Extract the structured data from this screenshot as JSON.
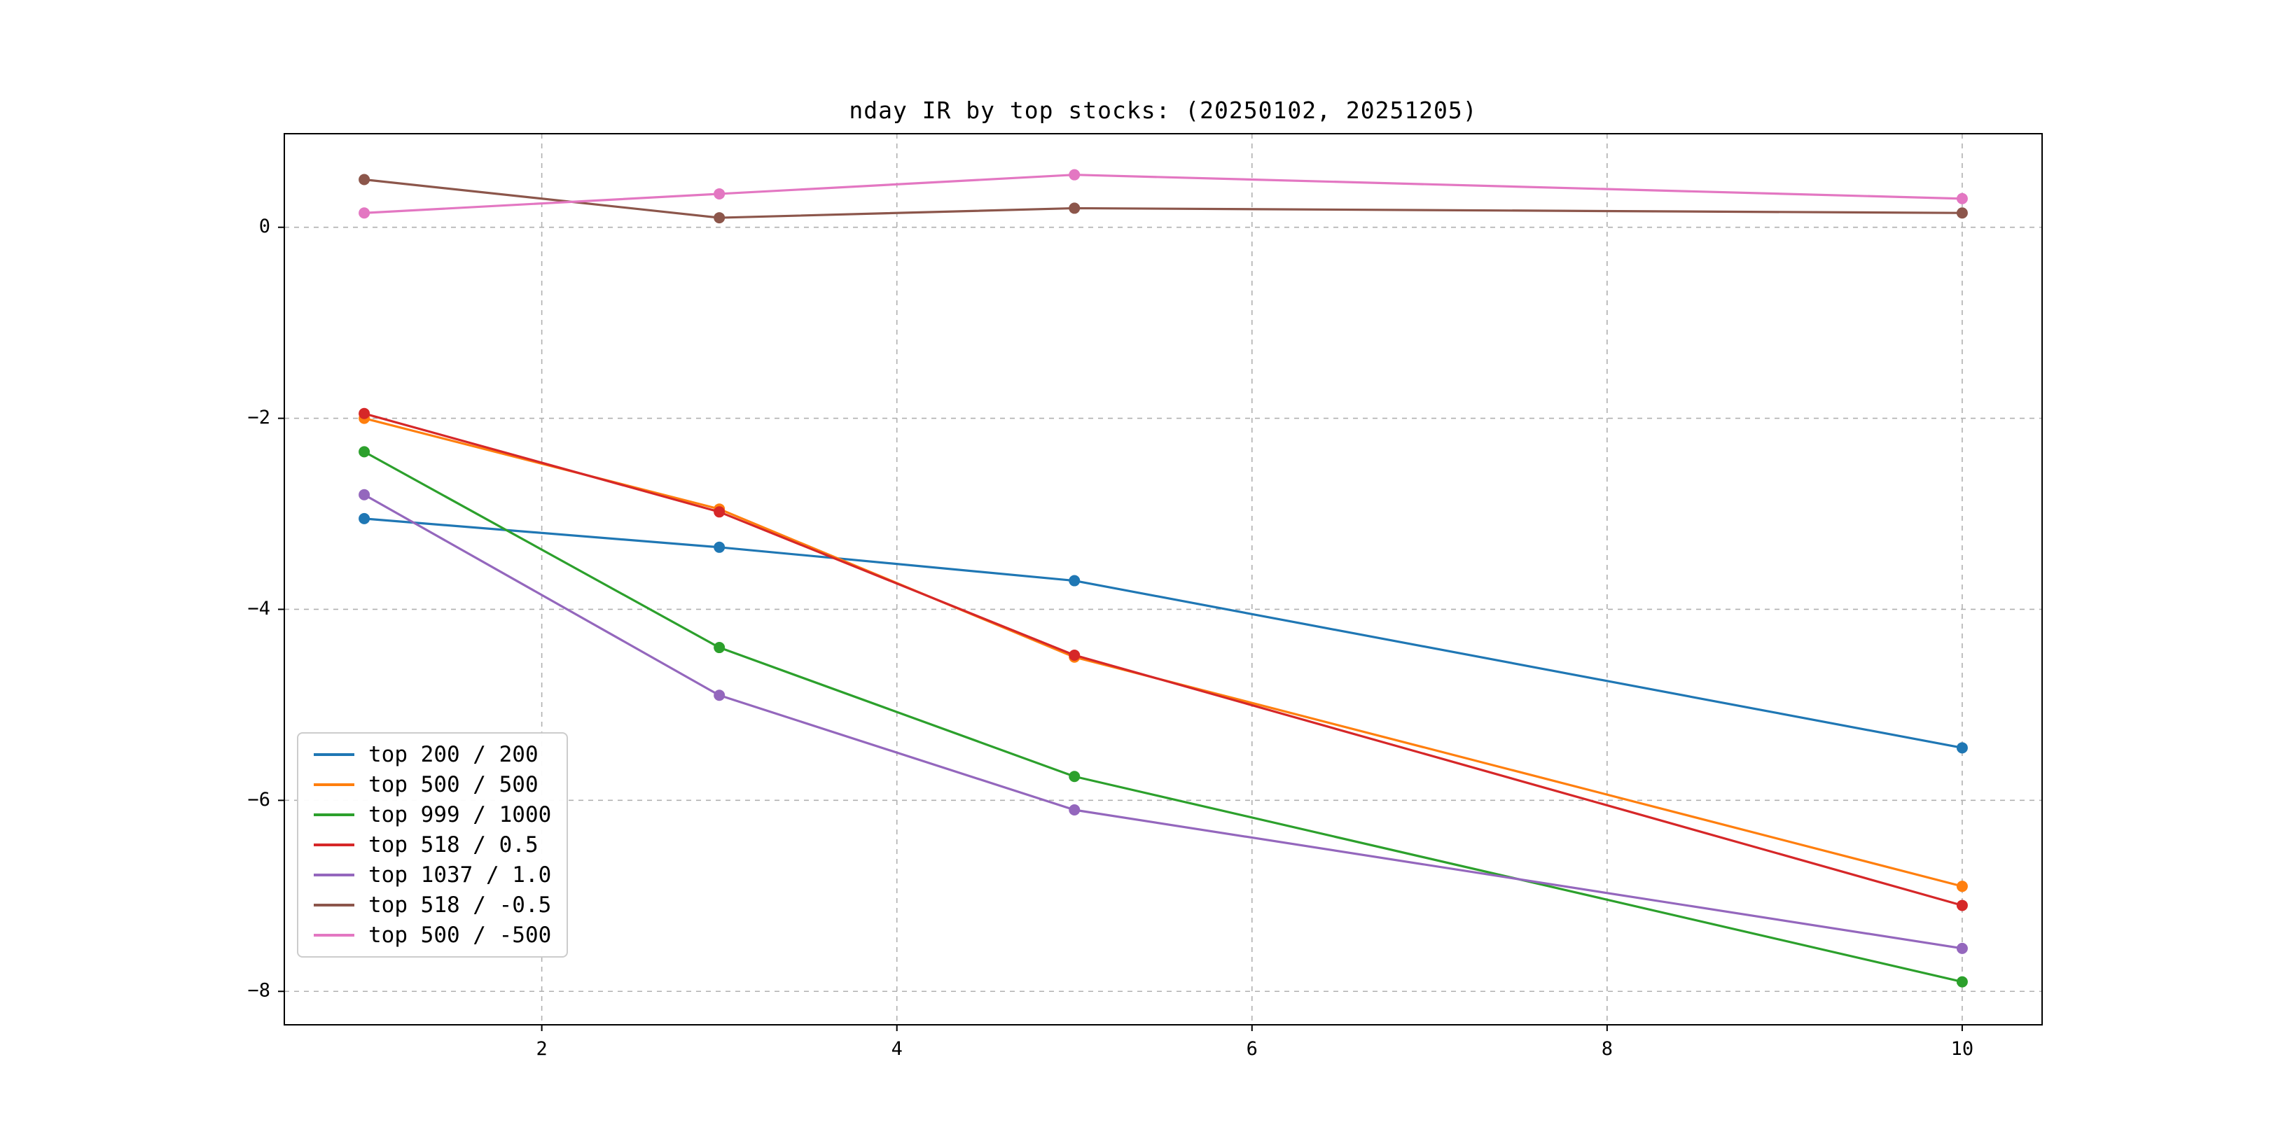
{
  "page": {
    "background": "#ffffff"
  },
  "chart_data": {
    "type": "line",
    "title": "nday IR by top stocks: (20250102, 20251205)",
    "xlabel": "",
    "ylabel": "",
    "x": [
      1,
      3,
      5,
      10
    ],
    "series": [
      {
        "name": "top 200 / 200",
        "color": "#1f77b4",
        "values": [
          -3.05,
          -3.35,
          -3.7,
          -5.45
        ]
      },
      {
        "name": "top 500 / 500",
        "color": "#ff7f0e",
        "values": [
          -2.0,
          -2.95,
          -4.5,
          -6.9
        ]
      },
      {
        "name": "top 999 / 1000",
        "color": "#2ca02c",
        "values": [
          -2.35,
          -4.4,
          -5.75,
          -7.9
        ]
      },
      {
        "name": "top 518 / 0.5",
        "color": "#d62728",
        "values": [
          -1.95,
          -2.98,
          -4.48,
          -7.1
        ]
      },
      {
        "name": "top 1037 / 1.0",
        "color": "#9467bd",
        "values": [
          -2.8,
          -4.9,
          -6.1,
          -7.55
        ]
      },
      {
        "name": "top 518 / -0.5",
        "color": "#8c564b",
        "values": [
          0.5,
          0.1,
          0.2,
          0.15
        ]
      },
      {
        "name": "top 500 / -500",
        "color": "#e377c2",
        "values": [
          0.15,
          0.35,
          0.55,
          0.3
        ]
      }
    ],
    "xlim": [
      0.55,
      10.45
    ],
    "ylim": [
      -8.35,
      0.98
    ],
    "xticks": {
      "values": [
        2,
        4,
        6,
        8,
        10
      ],
      "labels": [
        "2",
        "4",
        "6",
        "8",
        "10"
      ]
    },
    "yticks": {
      "values": [
        0,
        -2,
        -4,
        -6,
        -8
      ],
      "labels": [
        "0",
        "−2",
        "−4",
        "−6",
        "−8"
      ]
    },
    "grid": true,
    "grid_style": "dashed",
    "grid_color": "#b0b0b0",
    "axis_color": "#000000",
    "marker": "circle",
    "legend_position": "lower left"
  }
}
